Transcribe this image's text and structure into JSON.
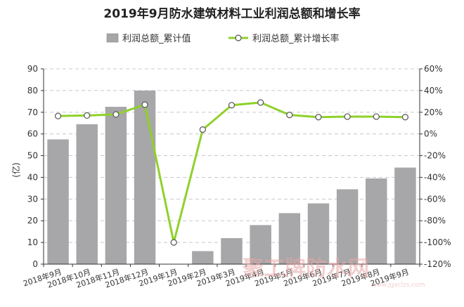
{
  "chart_data": {
    "type": "bar+line",
    "title": "2019年9月防水建筑材料工业利润总额和增长率",
    "ylabel": "(亿)",
    "categories": [
      "2018年9月",
      "2018年10月",
      "2018年11月",
      "2018年12月",
      "2019年1月",
      "2019年2月",
      "2019年3月",
      "2019年4月",
      "2019年5月",
      "2019年6月",
      "2019年7月",
      "2019年8月",
      "2019年9月"
    ],
    "ylim": [
      0,
      90
    ],
    "y_ticks": [
      "0",
      "10",
      "20",
      "30",
      "40",
      "50",
      "60",
      "70",
      "80",
      "90"
    ],
    "y2lim": [
      -120,
      60
    ],
    "y2_ticks": [
      "-120%",
      "-100%",
      "-80%",
      "-60%",
      "-40%",
      "-20%",
      "0%",
      "20%",
      "40%",
      "60%"
    ],
    "series": [
      {
        "name": "利润总额_累计值",
        "type": "bar",
        "color": "#a7a6a8",
        "values": [
          57.5,
          64.5,
          72.5,
          80,
          null,
          6,
          12,
          18,
          23.5,
          28,
          34.5,
          39.5,
          44.5
        ]
      },
      {
        "name": "利润总额_累计增长率",
        "type": "line",
        "color": "#8fd12a",
        "values": [
          16.5,
          17,
          18,
          27,
          -100,
          4,
          26.5,
          29,
          17.5,
          15.5,
          16,
          16,
          15.5
        ]
      }
    ],
    "grid": true,
    "legend_position": "top"
  },
  "watermark": {
    "text": "聚工牌防水网",
    "subtext": "www.jgxclzs.com"
  }
}
